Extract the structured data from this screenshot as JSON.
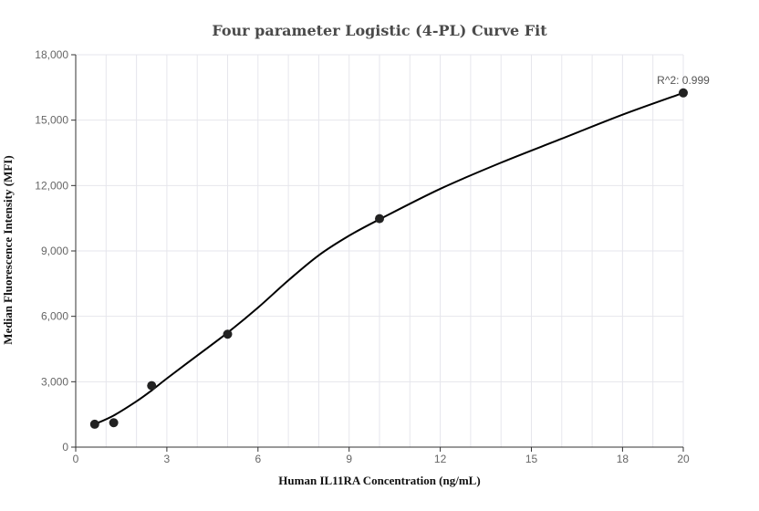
{
  "chart_data": {
    "type": "scatter",
    "title": "Four parameter Logistic (4-PL) Curve Fit",
    "xlabel": "Human IL11RA Concentration (ng/mL)",
    "ylabel": "Median Fluorescence Intensity (MFI)",
    "xlim": [
      0,
      20
    ],
    "ylim": [
      0,
      18000
    ],
    "x_ticks": [
      0,
      3,
      6,
      9,
      12,
      15,
      18,
      20
    ],
    "x_tick_labels": [
      "0",
      "3",
      "6",
      "9",
      "12",
      "15",
      "18",
      "20"
    ],
    "y_ticks": [
      0,
      3000,
      6000,
      9000,
      12000,
      15000,
      18000
    ],
    "y_tick_labels": [
      "0",
      "3,000",
      "6,000",
      "9,000",
      "12,000",
      "15,000",
      "18,000"
    ],
    "grid": true,
    "points": {
      "x": [
        0.625,
        1.25,
        2.5,
        5,
        10,
        20
      ],
      "y": [
        1050,
        1120,
        2820,
        5180,
        10480,
        16250
      ]
    },
    "fit_curve": {
      "x": [
        0.625,
        1.25,
        2,
        2.5,
        3,
        4,
        5,
        6,
        7,
        8,
        9,
        10,
        12,
        14,
        16,
        18,
        20
      ],
      "y": [
        1050,
        1450,
        2100,
        2600,
        3150,
        4200,
        5250,
        6400,
        7650,
        8800,
        9700,
        10450,
        11850,
        13050,
        14150,
        15250,
        16250
      ]
    },
    "annotation": "R^2: 0.999"
  },
  "colors": {
    "points": "#222222",
    "curve": "#000000",
    "grid": "#e6e6ec",
    "axis": "#333333"
  }
}
